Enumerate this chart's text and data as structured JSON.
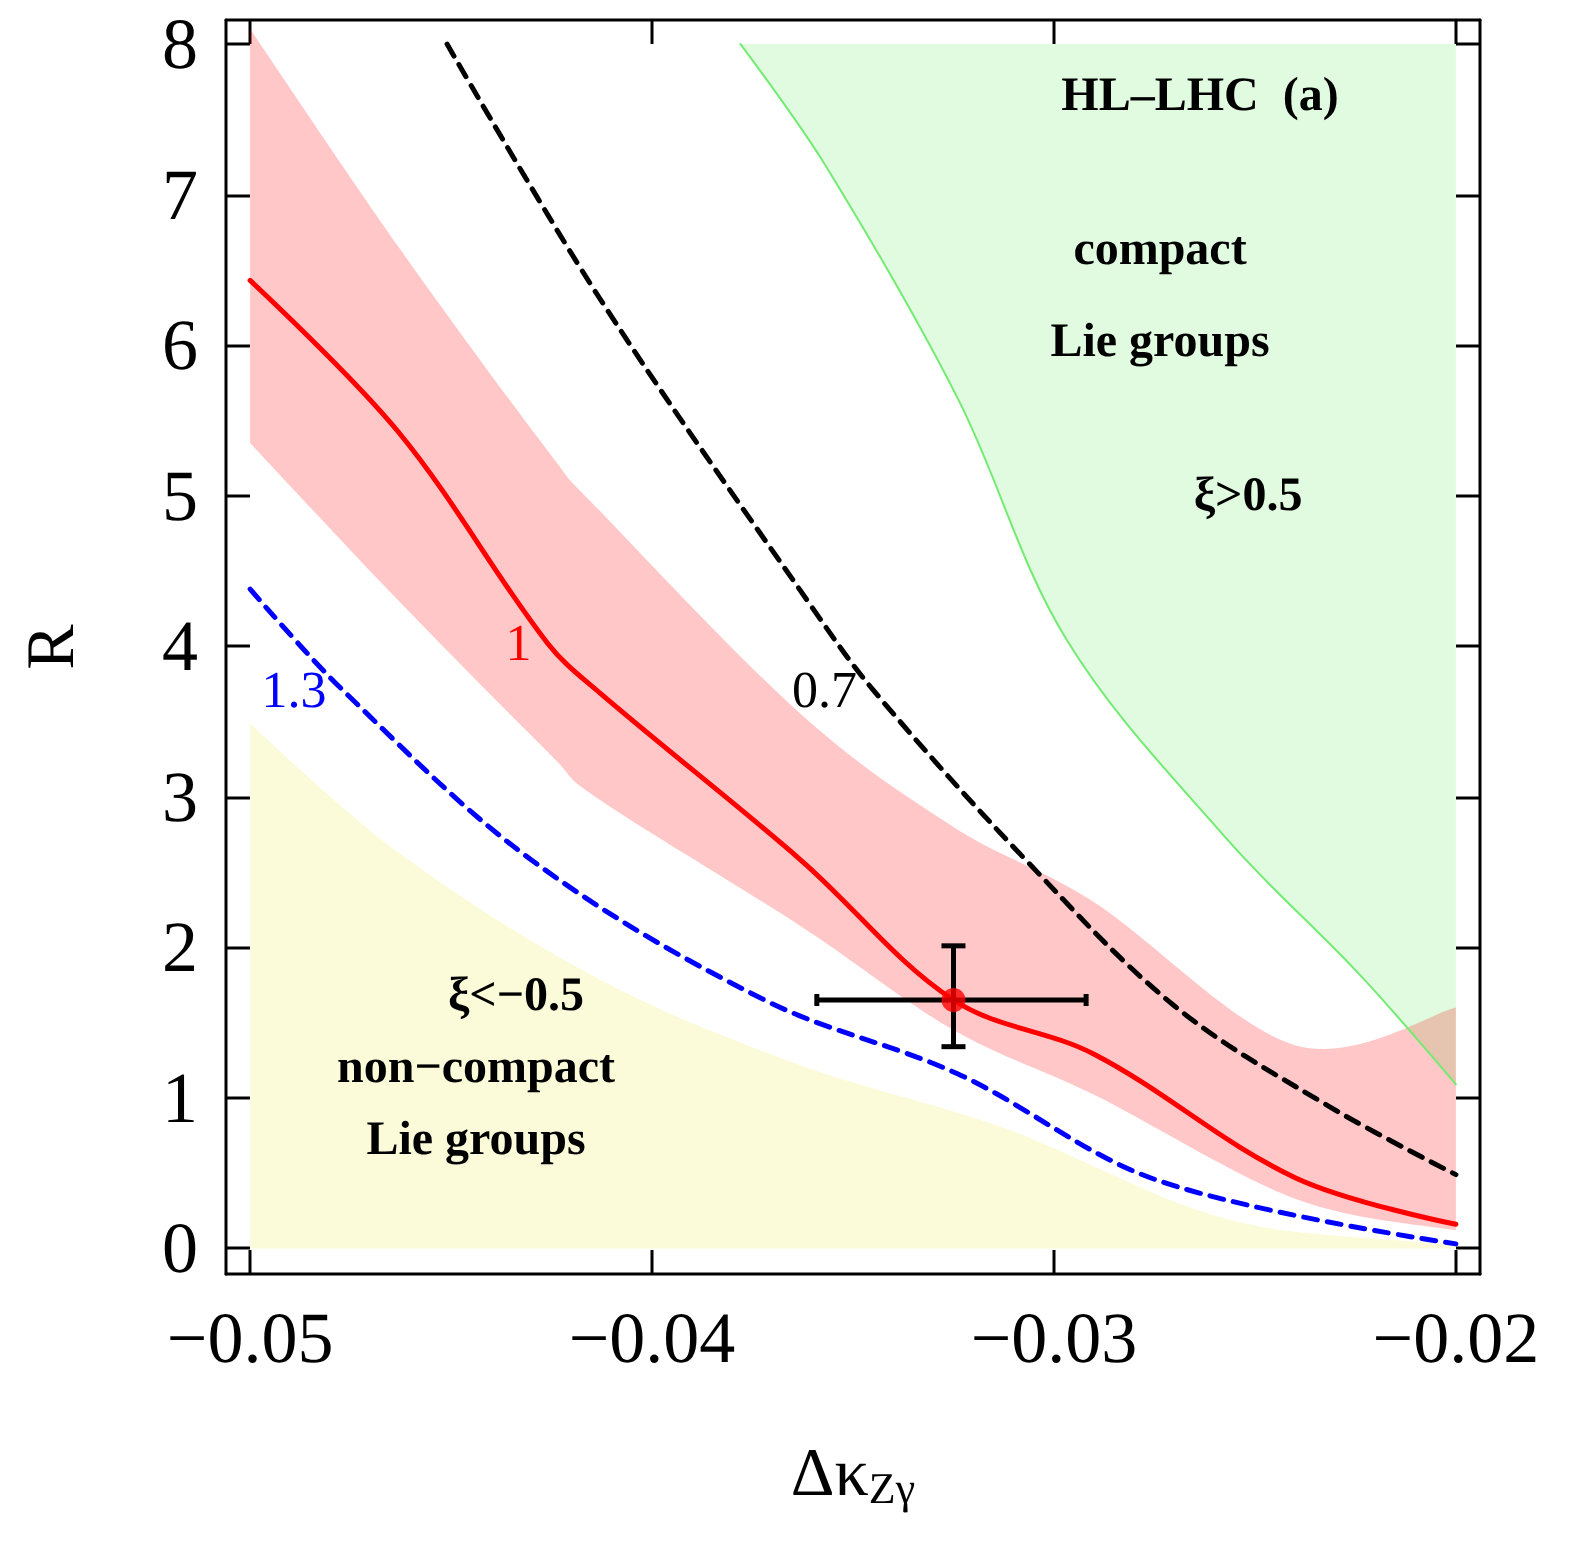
{
  "chart_data": {
    "type": "line",
    "xlabel": "Δκ$_{Zγ}$",
    "ylabel": "R",
    "xlim": [
      -0.0506,
      -0.0194
    ],
    "ylim": [
      -0.17,
      8.16
    ],
    "xticks": [
      {
        "value": -0.05,
        "label": "−0.05"
      },
      {
        "value": -0.04,
        "label": "−0.04"
      },
      {
        "value": -0.03,
        "label": "−0.03"
      },
      {
        "value": -0.02,
        "label": "−0.02"
      }
    ],
    "yticks": [
      0,
      1,
      2,
      3,
      4,
      5,
      6,
      7,
      8
    ],
    "grid": false,
    "legend": false,
    "annotations": [
      "HL–LHC  (a)",
      "compact\nLie groups",
      "ξ>0.5",
      "ξ<−0.5",
      "non−compact\nLie groups"
    ],
    "series": [
      {
        "type": "area",
        "color": "#fbfbd9",
        "x": [
          -0.05,
          -0.0463,
          -0.0413,
          -0.0363,
          -0.0313,
          -0.0257,
          -0.0207,
          -0.02
        ],
        "values": [
          3.48,
          2.62,
          1.78,
          1.21,
          0.8,
          0.19,
          0.03,
          0.02
        ]
      },
      {
        "color": "#73eb73",
        "line_style": "solid",
        "x": [
          -0.0378,
          -0.0357,
          -0.0324,
          -0.0297,
          -0.0257,
          -0.0224,
          -0.02
        ],
        "values": [
          8,
          7.2,
          5.65,
          4.05,
          2.72,
          1.82,
          1.09
        ],
        "lower": [
          8,
          7.2,
          5.65,
          4.05,
          2.72,
          1.82,
          1.09
        ],
        "upper": [
          8,
          8,
          8,
          8,
          8,
          8,
          8
        ]
      },
      {
        "name": "1.3",
        "color": "#0000ff",
        "line_style": "dashed",
        "x": [
          -0.05,
          -0.0477,
          -0.043,
          -0.0372,
          -0.0324,
          -0.0274,
          -0.02
        ],
        "values": [
          4.38,
          3.71,
          2.58,
          1.65,
          1.16,
          0.45,
          0.03
        ]
      },
      {
        "name": "1",
        "color": "#ff0000",
        "line_style": "solid",
        "x": [
          -0.05,
          -0.0463,
          -0.0426,
          -0.0413,
          -0.0363,
          -0.0325,
          -0.029,
          -0.024,
          -0.02
        ],
        "values": [
          6.43,
          5.42,
          4.02,
          3.69,
          2.58,
          1.65,
          1.29,
          0.47,
          0.16
        ],
        "lower": [
          5.35,
          4.3,
          3.3,
          2.98,
          2.14,
          1.45,
          1.02,
          0.33,
          0.12
        ],
        "upper": [
          8.1,
          6.65,
          5.3,
          4.9,
          3.55,
          2.8,
          2.3,
          1.35,
          1.6
        ]
      },
      {
        "name": "0.7",
        "color": "#000000",
        "line_style": "dashed",
        "x": [
          -0.0451,
          -0.0413,
          -0.0361,
          -0.0345,
          -0.0307,
          -0.027,
          -0.0232,
          -0.02
        ],
        "values": [
          8.0,
          6.31,
          4.29,
          3.71,
          2.58,
          1.61,
          0.95,
          0.49
        ]
      },
      {
        "type": "scatter",
        "color": "#ff0000",
        "marker": "circle",
        "x": [
          -0.0325
        ],
        "values": [
          1.65
        ],
        "errors": [
          [
            1.34,
            2.01
          ]
        ],
        "xerrors": [
          [
            -0.0359,
            -0.0292
          ]
        ]
      }
    ]
  }
}
